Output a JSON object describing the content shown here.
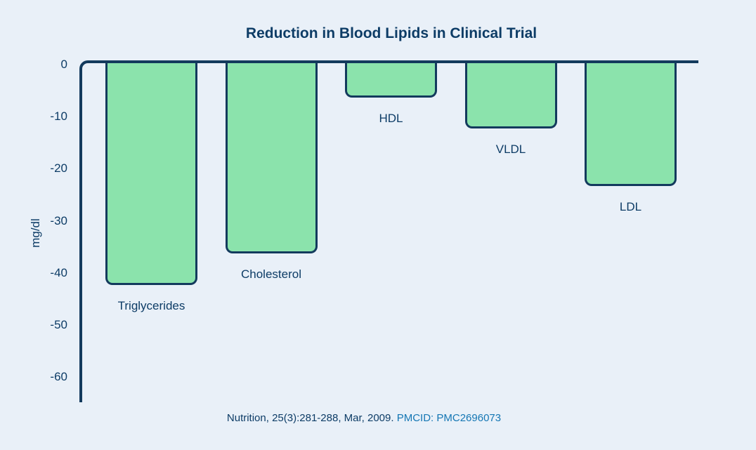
{
  "chart_data": {
    "type": "bar",
    "title": "Reduction in Blood Lipids in Clinical Trial",
    "categories": [
      "Triglycerides",
      "Cholesterol",
      "HDL",
      "VLDL",
      "LDL"
    ],
    "values": [
      -42,
      -36,
      -6,
      -12,
      -23
    ],
    "xlabel": "",
    "ylabel": "mg/dl",
    "yticks": [
      0,
      -10,
      -20,
      -30,
      -40,
      -50,
      -60
    ],
    "ylim": [
      -65,
      0
    ],
    "grid": false,
    "legend": false,
    "bar_color": "#8be3ac",
    "bar_border_color": "#133a5d"
  },
  "caption": {
    "reference": "Nutrition, 25(3):281-288, Mar, 2009.",
    "pmcid": "PMCID: PMC2696073"
  },
  "colors": {
    "background": "#e9f0f8",
    "text_navy": "#0d3c66",
    "axis_navy": "#133a5d",
    "link_blue": "#1577b4"
  }
}
